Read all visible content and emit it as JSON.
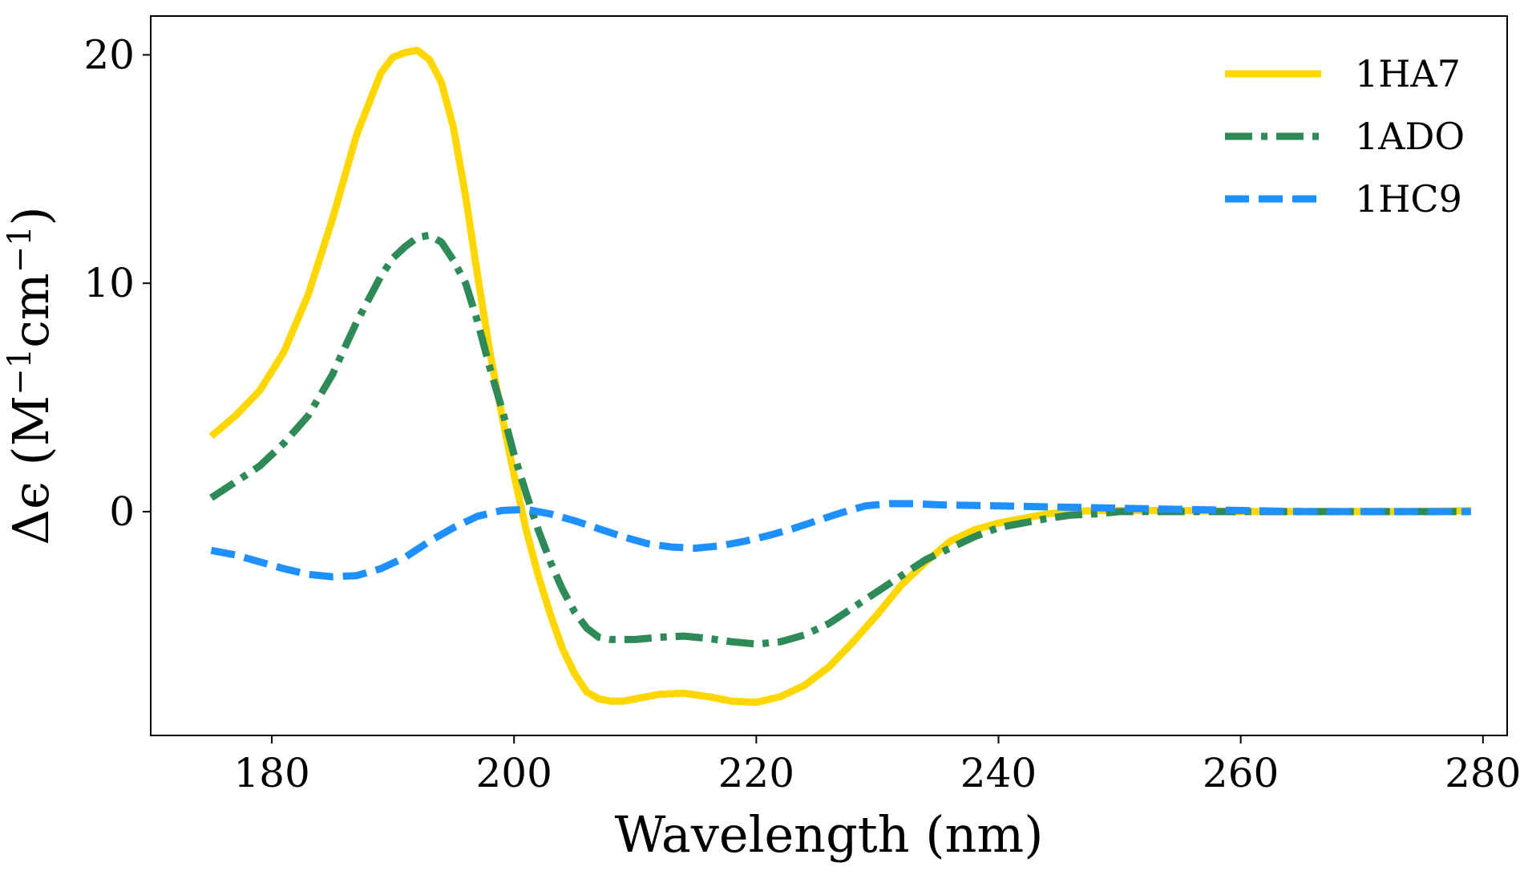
{
  "chart_data": {
    "type": "line",
    "xlabel": "Wavelength (nm)",
    "ylabel": "Δϵ (M",
    "ylabel_sup1": "−1",
    "ylabel_mid": "cm",
    "ylabel_sup2": "−1",
    "ylabel_end": ")",
    "xlim": [
      170,
      282
    ],
    "ylim": [
      -9.8,
      21.7
    ],
    "xticks": [
      180,
      200,
      220,
      240,
      260,
      280
    ],
    "yticks": [
      0,
      10,
      20
    ],
    "xtick_labels": [
      "180",
      "200",
      "220",
      "240",
      "260",
      "280"
    ],
    "ytick_labels": [
      "0",
      "10",
      "20"
    ],
    "grid": false,
    "legend": "top-right",
    "series": [
      {
        "name": "1HA7",
        "color": "#FFD700",
        "style": "solid",
        "x": [
          175,
          177,
          179,
          181,
          183,
          185,
          187,
          189,
          190,
          191,
          192,
          193,
          194,
          195,
          196,
          197,
          198,
          199,
          200,
          201,
          202,
          203,
          204,
          205,
          206,
          207,
          208,
          209,
          210,
          212,
          214,
          216,
          218,
          220,
          222,
          224,
          226,
          228,
          230,
          232,
          234,
          236,
          238,
          240,
          242,
          244,
          246,
          248,
          250,
          255,
          260,
          265,
          270,
          275,
          279
        ],
        "values": [
          3.3,
          4.2,
          5.3,
          7.0,
          9.5,
          12.8,
          16.5,
          19.2,
          19.9,
          20.1,
          20.2,
          19.8,
          18.8,
          16.8,
          13.8,
          10.3,
          7.0,
          4.2,
          1.6,
          -0.8,
          -2.8,
          -4.5,
          -6.0,
          -7.1,
          -7.9,
          -8.2,
          -8.3,
          -8.3,
          -8.2,
          -8.0,
          -7.95,
          -8.1,
          -8.3,
          -8.35,
          -8.1,
          -7.6,
          -6.8,
          -5.7,
          -4.5,
          -3.2,
          -2.2,
          -1.3,
          -0.8,
          -0.5,
          -0.3,
          -0.1,
          0.0,
          0.05,
          0.05,
          0.05,
          0.0,
          0.0,
          0.0,
          0.0,
          0.05
        ]
      },
      {
        "name": "1ADO",
        "color": "#2E8B57",
        "style": "dashdot",
        "x": [
          175,
          177,
          179,
          181,
          183,
          185,
          187,
          189,
          190,
          191,
          192,
          193,
          194,
          195,
          196,
          197,
          198,
          199,
          200,
          201,
          202,
          203,
          204,
          205,
          206,
          207,
          208,
          210,
          212,
          214,
          216,
          218,
          220,
          222,
          224,
          226,
          228,
          230,
          232,
          234,
          236,
          238,
          240,
          242,
          244,
          246,
          248,
          250,
          255,
          260,
          265,
          270,
          275,
          279
        ],
        "values": [
          0.6,
          1.3,
          2.0,
          3.0,
          4.2,
          6.0,
          8.3,
          10.3,
          11.1,
          11.6,
          12.0,
          12.1,
          11.8,
          11.0,
          10.0,
          8.3,
          6.3,
          4.5,
          2.5,
          0.8,
          -0.8,
          -2.2,
          -3.4,
          -4.4,
          -5.1,
          -5.5,
          -5.6,
          -5.6,
          -5.5,
          -5.45,
          -5.55,
          -5.7,
          -5.8,
          -5.7,
          -5.4,
          -4.9,
          -4.2,
          -3.5,
          -2.8,
          -2.1,
          -1.6,
          -1.1,
          -0.7,
          -0.5,
          -0.3,
          -0.15,
          -0.1,
          0.0,
          0.0,
          0.0,
          0.0,
          0.0,
          0.0,
          0.0
        ]
      },
      {
        "name": "1HC9",
        "color": "#1E90FF",
        "style": "dashed",
        "x": [
          175,
          177,
          179,
          181,
          183,
          185,
          187,
          189,
          191,
          193,
          195,
          197,
          199,
          201,
          203,
          205,
          207,
          209,
          211,
          213,
          215,
          217,
          219,
          221,
          223,
          225,
          227,
          229,
          231,
          233,
          235,
          240,
          245,
          250,
          255,
          260,
          265,
          270,
          275,
          279
        ],
        "values": [
          -1.7,
          -1.9,
          -2.2,
          -2.5,
          -2.75,
          -2.85,
          -2.8,
          -2.5,
          -2.0,
          -1.3,
          -0.7,
          -0.2,
          0.05,
          0.1,
          -0.1,
          -0.4,
          -0.75,
          -1.1,
          -1.4,
          -1.55,
          -1.6,
          -1.5,
          -1.3,
          -1.05,
          -0.75,
          -0.4,
          -0.05,
          0.25,
          0.35,
          0.35,
          0.3,
          0.25,
          0.2,
          0.15,
          0.1,
          0.05,
          0.0,
          0.0,
          0.0,
          0.0
        ]
      }
    ]
  }
}
